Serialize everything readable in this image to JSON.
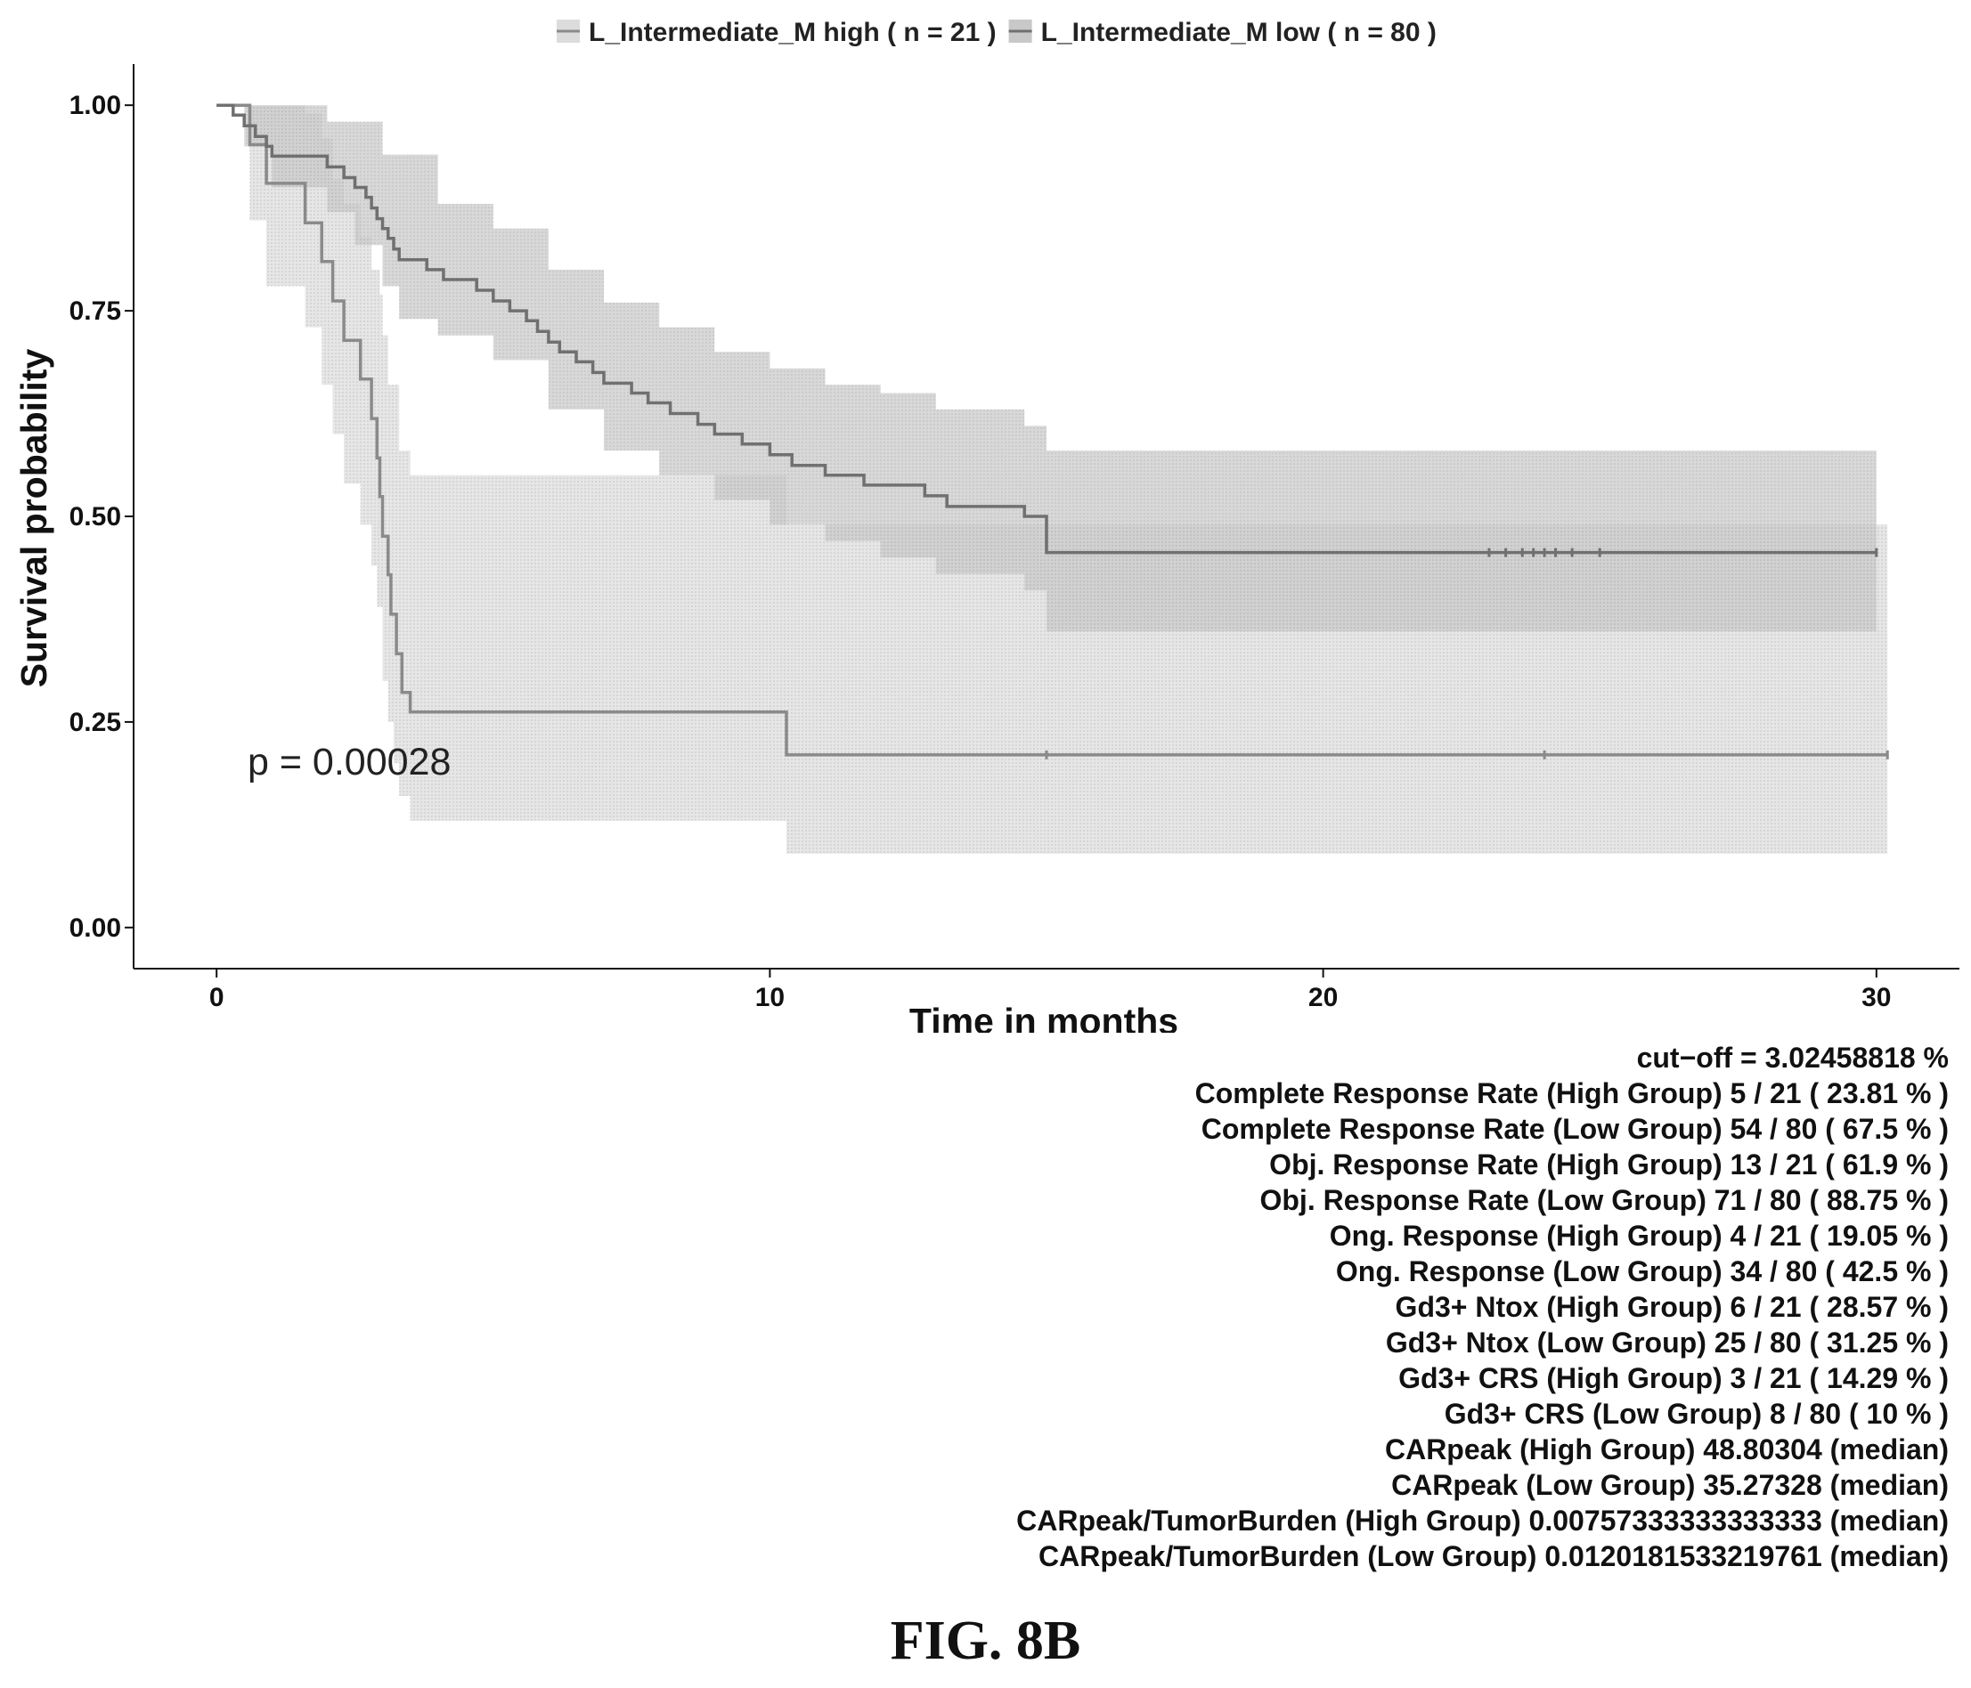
{
  "chart_data": {
    "type": "line",
    "subtype": "kaplan-meier",
    "title": "",
    "xlabel": "Time in months",
    "ylabel": "Survival probability",
    "xlim": [
      -1.5,
      31.5
    ],
    "ylim": [
      -0.05,
      1.05
    ],
    "x_ticks": [
      0,
      10,
      20,
      30
    ],
    "y_ticks": [
      0.0,
      0.25,
      0.5,
      0.75,
      1.0
    ],
    "x_tick_labels": [
      "0",
      "10",
      "20",
      "30"
    ],
    "y_tick_labels": [
      "0.00",
      "0.25",
      "0.50",
      "0.75",
      "1.00"
    ],
    "grid": false,
    "legend_position": "top",
    "annotation": "p = 0.00028",
    "series": [
      {
        "name": "L_Intermediate_M high ( n = 21 )",
        "color": "#8a8a8a",
        "band_color": "#dcdcdc",
        "steps": [
          [
            0,
            1.0
          ],
          [
            0.6,
            0.952
          ],
          [
            0.9,
            0.905
          ],
          [
            1.6,
            0.857
          ],
          [
            1.9,
            0.81
          ],
          [
            2.1,
            0.762
          ],
          [
            2.3,
            0.714
          ],
          [
            2.6,
            0.667
          ],
          [
            2.8,
            0.619
          ],
          [
            2.9,
            0.571
          ],
          [
            2.95,
            0.524
          ],
          [
            3.0,
            0.476
          ],
          [
            3.1,
            0.429
          ],
          [
            3.15,
            0.381
          ],
          [
            3.25,
            0.333
          ],
          [
            3.35,
            0.286
          ],
          [
            3.5,
            0.262
          ],
          [
            10.3,
            0.21
          ],
          [
            30.2,
            0.21
          ]
        ],
        "lower": [
          [
            0,
            1.0
          ],
          [
            0.6,
            0.86
          ],
          [
            0.9,
            0.78
          ],
          [
            1.6,
            0.73
          ],
          [
            1.9,
            0.66
          ],
          [
            2.1,
            0.6
          ],
          [
            2.3,
            0.54
          ],
          [
            2.6,
            0.49
          ],
          [
            2.8,
            0.44
          ],
          [
            2.9,
            0.39
          ],
          [
            3.0,
            0.3
          ],
          [
            3.1,
            0.25
          ],
          [
            3.2,
            0.2
          ],
          [
            3.3,
            0.16
          ],
          [
            3.5,
            0.13
          ],
          [
            10.3,
            0.09
          ],
          [
            30.2,
            0.09
          ]
        ],
        "upper": [
          [
            0,
            1.0
          ],
          [
            0.6,
            1.0
          ],
          [
            1.6,
            0.99
          ],
          [
            1.9,
            0.96
          ],
          [
            2.1,
            0.91
          ],
          [
            2.3,
            0.88
          ],
          [
            2.6,
            0.84
          ],
          [
            2.8,
            0.8
          ],
          [
            2.95,
            0.77
          ],
          [
            3.0,
            0.72
          ],
          [
            3.1,
            0.66
          ],
          [
            3.3,
            0.58
          ],
          [
            3.5,
            0.55
          ],
          [
            10.3,
            0.49
          ],
          [
            30.2,
            0.49
          ]
        ],
        "censor_times": [
          15.0,
          24.0,
          30.2
        ]
      },
      {
        "name": "L_Intermediate_M low ( n = 80 )",
        "color": "#707070",
        "band_color": "#c8c8c8",
        "steps": [
          [
            0,
            1.0
          ],
          [
            0.3,
            0.988
          ],
          [
            0.5,
            0.975
          ],
          [
            0.7,
            0.962
          ],
          [
            0.9,
            0.95
          ],
          [
            1.0,
            0.938
          ],
          [
            2.0,
            0.925
          ],
          [
            2.3,
            0.912
          ],
          [
            2.5,
            0.9
          ],
          [
            2.7,
            0.888
          ],
          [
            2.8,
            0.875
          ],
          [
            2.9,
            0.862
          ],
          [
            3.0,
            0.85
          ],
          [
            3.1,
            0.838
          ],
          [
            3.2,
            0.825
          ],
          [
            3.3,
            0.812
          ],
          [
            3.8,
            0.8
          ],
          [
            4.1,
            0.788
          ],
          [
            4.7,
            0.775
          ],
          [
            5.0,
            0.762
          ],
          [
            5.3,
            0.75
          ],
          [
            5.6,
            0.738
          ],
          [
            5.8,
            0.725
          ],
          [
            6.0,
            0.712
          ],
          [
            6.2,
            0.7
          ],
          [
            6.5,
            0.688
          ],
          [
            6.8,
            0.675
          ],
          [
            7.0,
            0.662
          ],
          [
            7.5,
            0.65
          ],
          [
            7.8,
            0.638
          ],
          [
            8.2,
            0.625
          ],
          [
            8.7,
            0.612
          ],
          [
            9.0,
            0.6
          ],
          [
            9.5,
            0.588
          ],
          [
            10.0,
            0.575
          ],
          [
            10.4,
            0.562
          ],
          [
            11.0,
            0.55
          ],
          [
            11.7,
            0.538
          ],
          [
            12.8,
            0.525
          ],
          [
            13.2,
            0.512
          ],
          [
            14.6,
            0.5
          ],
          [
            15.0,
            0.456
          ],
          [
            30.0,
            0.456
          ]
        ],
        "lower": [
          [
            0,
            1.0
          ],
          [
            0.5,
            0.95
          ],
          [
            1.0,
            0.9
          ],
          [
            2.0,
            0.87
          ],
          [
            2.5,
            0.83
          ],
          [
            3.0,
            0.78
          ],
          [
            3.3,
            0.74
          ],
          [
            4.0,
            0.72
          ],
          [
            5.0,
            0.69
          ],
          [
            6.0,
            0.63
          ],
          [
            7.0,
            0.58
          ],
          [
            8.0,
            0.55
          ],
          [
            9.0,
            0.52
          ],
          [
            10.0,
            0.49
          ],
          [
            11.0,
            0.47
          ],
          [
            12.0,
            0.45
          ],
          [
            13.0,
            0.43
          ],
          [
            14.6,
            0.41
          ],
          [
            15.0,
            0.36
          ],
          [
            30.0,
            0.36
          ]
        ],
        "upper": [
          [
            0,
            1.0
          ],
          [
            2.0,
            0.98
          ],
          [
            3.0,
            0.94
          ],
          [
            4.0,
            0.88
          ],
          [
            5.0,
            0.85
          ],
          [
            6.0,
            0.8
          ],
          [
            7.0,
            0.76
          ],
          [
            8.0,
            0.73
          ],
          [
            9.0,
            0.7
          ],
          [
            10.0,
            0.68
          ],
          [
            11.0,
            0.66
          ],
          [
            12.0,
            0.65
          ],
          [
            13.0,
            0.63
          ],
          [
            14.6,
            0.61
          ],
          [
            15.0,
            0.58
          ],
          [
            30.0,
            0.58
          ]
        ],
        "censor_times": [
          23.0,
          23.3,
          23.6,
          23.8,
          24.0,
          24.2,
          24.5,
          25.0,
          30.0
        ]
      }
    ]
  },
  "stats": [
    "cut−off = 3.02458818 %",
    "Complete Response Rate (High Group) 5 / 21 ( 23.81 % )",
    "Complete Response Rate (Low Group) 54 / 80 ( 67.5 % )",
    "Obj. Response Rate (High Group) 13 / 21 ( 61.9 % )",
    "Obj. Response Rate (Low Group) 71 / 80 ( 88.75 % )",
    "Ong. Response (High Group) 4 / 21 ( 19.05 % )",
    "Ong. Response (Low Group) 34 / 80 ( 42.5 % )",
    "Gd3+ Ntox (High Group) 6 / 21 ( 28.57 % )",
    "Gd3+ Ntox (Low Group) 25 / 80 ( 31.25 % )",
    "Gd3+ CRS (High Group) 3 / 21 ( 14.29 % )",
    "Gd3+ CRS (Low Group) 8 / 80 ( 10 % )",
    "CARpeak (High Group) 48.80304 (median)",
    "CARpeak (Low Group) 35.27328 (median)",
    "CARpeak/TumorBurden (High Group) 0.00757333333333333 (median)",
    "CARpeak/TumorBurden (Low Group) 0.0120181533219761 (median)"
  ],
  "figure_label": "FIG. 8B"
}
